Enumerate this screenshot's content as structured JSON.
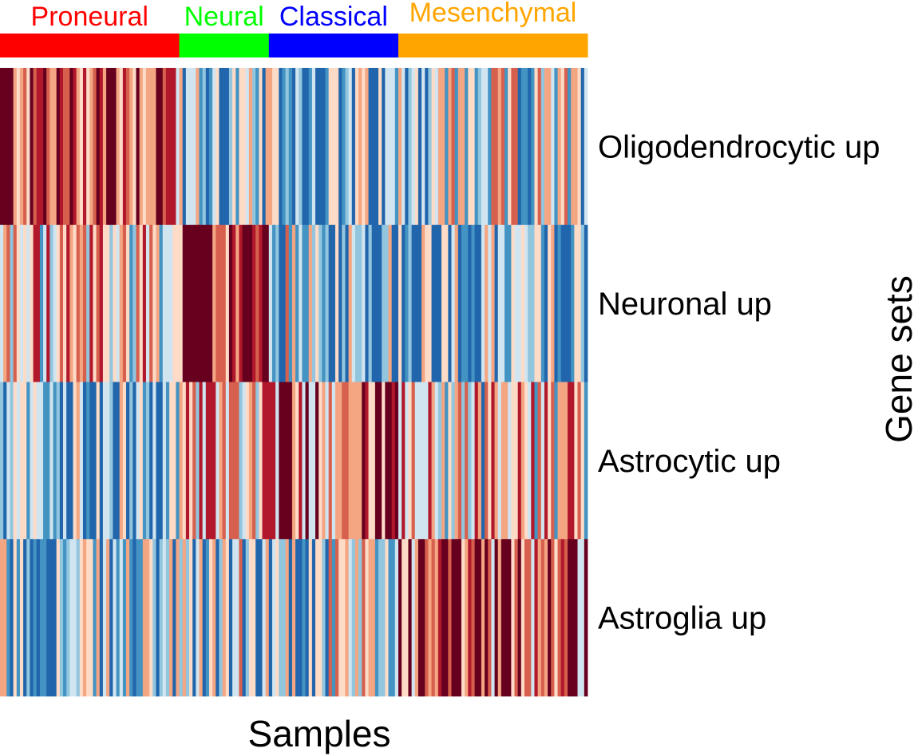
{
  "chart_data": {
    "type": "heatmap",
    "xlabel": "Samples",
    "ylabel": "Gene sets",
    "rows": [
      "Oligodendrocytic up",
      "Neuronal up",
      "Astrocytic up",
      "Astroglia up"
    ],
    "groups": [
      {
        "name": "Proneural",
        "n_samples": 54,
        "color": "#ff0000"
      },
      {
        "name": "Neural",
        "n_samples": 27,
        "color": "#00ff00"
      },
      {
        "name": "Classical",
        "n_samples": 39,
        "color": "#0000ff"
      },
      {
        "name": "Mesenchymal",
        "n_samples": 57,
        "color": "#ffa500"
      }
    ],
    "value_range": [
      -1,
      1
    ],
    "palette": [
      "#2166ac",
      "#4393c3",
      "#92c5de",
      "#d1e5f0",
      "#fddbc7",
      "#f4a582",
      "#d6604d",
      "#b2182b",
      "#67001f"
    ],
    "group_row_mean_levels": [
      [
        0.55,
        -0.45,
        -0.55,
        -0.25
      ],
      [
        0.05,
        0.75,
        -0.35,
        -0.45
      ],
      [
        -0.55,
        0.25,
        0.45,
        -0.05
      ],
      [
        -0.45,
        -0.35,
        -0.3,
        0.55
      ]
    ],
    "grid": false,
    "legend": "none"
  }
}
